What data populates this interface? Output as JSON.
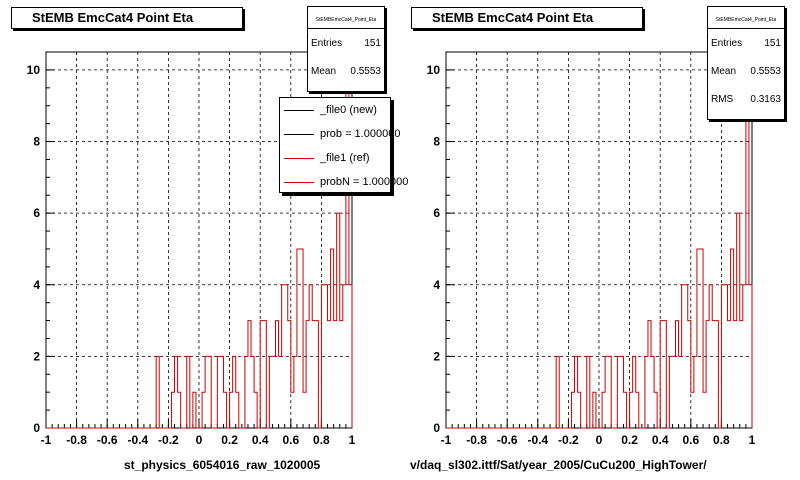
{
  "panels": [
    {
      "title": "StEMB EmcCat4 Point Eta",
      "stats": {
        "header": "StEMBEmcCat4_Point_Eta",
        "rows": [
          {
            "label": "Entries",
            "value": "151"
          },
          {
            "label": "Mean",
            "value": "0.5553"
          }
        ]
      },
      "bottom_label": "st_physics_6054016_raw_1020005"
    },
    {
      "title": "StEMB EmcCat4 Point Eta",
      "stats": {
        "header": "StEMBEmcCat4_Point_Eta",
        "rows": [
          {
            "label": "Entries",
            "value": "151"
          },
          {
            "label": "Mean",
            "value": "0.5553"
          },
          {
            "label": "RMS",
            "value": "0.3163"
          }
        ]
      },
      "bottom_label": "v/daq_sl302.ittf/Sat/year_2005/CuCu200_HighTower/"
    }
  ],
  "legend": {
    "items": [
      {
        "label": "_file0 (new)",
        "color": "#000000"
      },
      {
        "label": "prob = 1.000000",
        "color": "#000000"
      },
      {
        "label": "_file1 (ref)",
        "color": "#d00000"
      },
      {
        "label": "probN = 1.000000",
        "color": "#d00000"
      }
    ]
  },
  "chart_data": [
    {
      "type": "histogram",
      "title": "StEMB EmcCat4 Point Eta",
      "xlim": [
        -1,
        1
      ],
      "ylim": [
        0,
        10.5
      ],
      "x_ticks": [
        "-1",
        "-0.8",
        "-0.6",
        "-0.4",
        "-0.2",
        "0",
        "0.2",
        "0.4",
        "0.6",
        "0.8",
        "1"
      ],
      "y_ticks": [
        "0",
        "2",
        "4",
        "6",
        "8",
        "10"
      ],
      "grid": true,
      "bins": 100,
      "series": [
        {
          "color": "#d00000",
          "values": [
            0,
            0,
            0,
            0,
            0,
            0,
            0,
            0,
            0,
            0,
            0,
            0,
            0,
            0,
            0,
            0,
            0,
            0,
            0,
            0,
            0,
            0,
            0,
            0,
            0,
            0,
            0,
            0,
            0,
            0,
            0,
            0,
            0,
            0,
            0,
            0,
            2,
            0,
            0,
            0,
            0,
            1,
            2,
            1,
            0,
            0,
            2,
            0,
            1,
            0,
            0,
            1,
            2,
            2,
            0,
            0,
            2,
            2,
            1,
            0,
            1,
            2,
            1,
            0,
            0,
            2,
            3,
            2,
            1,
            0,
            3,
            3,
            0,
            2,
            2,
            3,
            2,
            4,
            4,
            3,
            1,
            2,
            5,
            5,
            1,
            3,
            4,
            3,
            3,
            0,
            4,
            4,
            3,
            5,
            3,
            6,
            3,
            4,
            10,
            4
          ]
        }
      ]
    },
    {
      "type": "histogram",
      "title": "StEMB EmcCat4 Point Eta",
      "xlim": [
        -1,
        1
      ],
      "ylim": [
        0,
        10.5
      ],
      "x_ticks": [
        "-1",
        "-0.8",
        "-0.6",
        "-0.4",
        "-0.2",
        "0",
        "0.2",
        "0.4",
        "0.6",
        "0.8",
        "1"
      ],
      "y_ticks": [
        "0",
        "2",
        "4",
        "6",
        "8",
        "10"
      ],
      "grid": true,
      "bins": 100,
      "series": [
        {
          "color": "#d00000",
          "values": [
            0,
            0,
            0,
            0,
            0,
            0,
            0,
            0,
            0,
            0,
            0,
            0,
            0,
            0,
            0,
            0,
            0,
            0,
            0,
            0,
            0,
            0,
            0,
            0,
            0,
            0,
            0,
            0,
            0,
            0,
            0,
            0,
            0,
            0,
            0,
            0,
            2,
            0,
            0,
            0,
            0,
            1,
            2,
            1,
            0,
            0,
            2,
            0,
            1,
            0,
            0,
            1,
            2,
            2,
            0,
            0,
            2,
            2,
            1,
            0,
            1,
            2,
            1,
            0,
            0,
            2,
            3,
            2,
            1,
            0,
            3,
            3,
            0,
            2,
            2,
            3,
            2,
            4,
            4,
            3,
            1,
            2,
            5,
            5,
            1,
            3,
            4,
            3,
            3,
            0,
            4,
            4,
            3,
            5,
            3,
            6,
            3,
            4,
            10,
            4
          ]
        }
      ]
    }
  ]
}
